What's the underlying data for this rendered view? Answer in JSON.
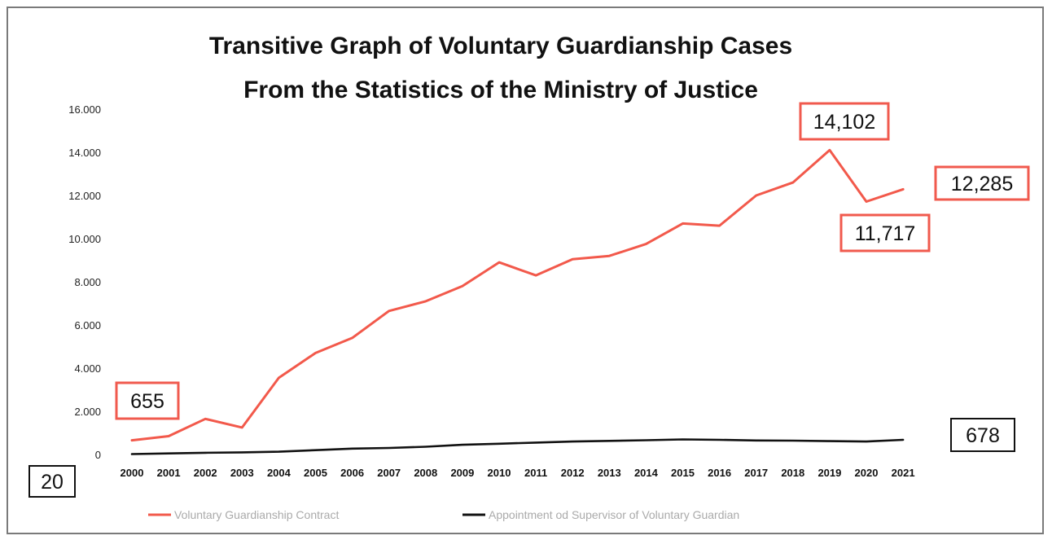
{
  "chart_data": {
    "type": "line",
    "title": "Transitive Graph of Voluntary Guardianship Cases",
    "subtitle": "From the Statistics of the Ministry of Justice",
    "xlabel": "",
    "ylabel": "",
    "ylim": [
      0,
      16000
    ],
    "yticks": [
      0,
      2000,
      4000,
      6000,
      8000,
      10000,
      12000,
      14000,
      16000
    ],
    "ytick_labels": [
      "0",
      "2.000",
      "4.000",
      "6.000",
      "8.000",
      "10.000",
      "12.000",
      "14.000",
      "16.000"
    ],
    "grid": false,
    "legend_position": "bottom",
    "categories": [
      "2000",
      "2001",
      "2002",
      "2003",
      "2004",
      "2005",
      "2006",
      "2007",
      "2008",
      "2009",
      "2010",
      "2011",
      "2012",
      "2013",
      "2014",
      "2015",
      "2016",
      "2017",
      "2018",
      "2019",
      "2020",
      "2021"
    ],
    "series": [
      {
        "name": "Voluntary Guardianship Contract",
        "color": "#f2594b",
        "values": [
          655,
          850,
          1650,
          1250,
          3550,
          4700,
          5400,
          6650,
          7100,
          7800,
          8900,
          8300,
          9050,
          9200,
          9750,
          10700,
          10600,
          12000,
          12600,
          14102,
          11717,
          12285
        ]
      },
      {
        "name": "Appointment od Supervisor of Voluntary Guardian",
        "color": "#111111",
        "values": [
          20,
          50,
          80,
          100,
          130,
          200,
          270,
          300,
          360,
          450,
          500,
          550,
          600,
          630,
          660,
          700,
          680,
          650,
          640,
          620,
          600,
          678
        ]
      }
    ],
    "annotations": [
      {
        "text": "655",
        "style": "red"
      },
      {
        "text": "14,102",
        "style": "red"
      },
      {
        "text": "12,285",
        "style": "red"
      },
      {
        "text": "11,717",
        "style": "red"
      },
      {
        "text": "678",
        "style": "black"
      },
      {
        "text": "20",
        "style": "black"
      }
    ]
  }
}
